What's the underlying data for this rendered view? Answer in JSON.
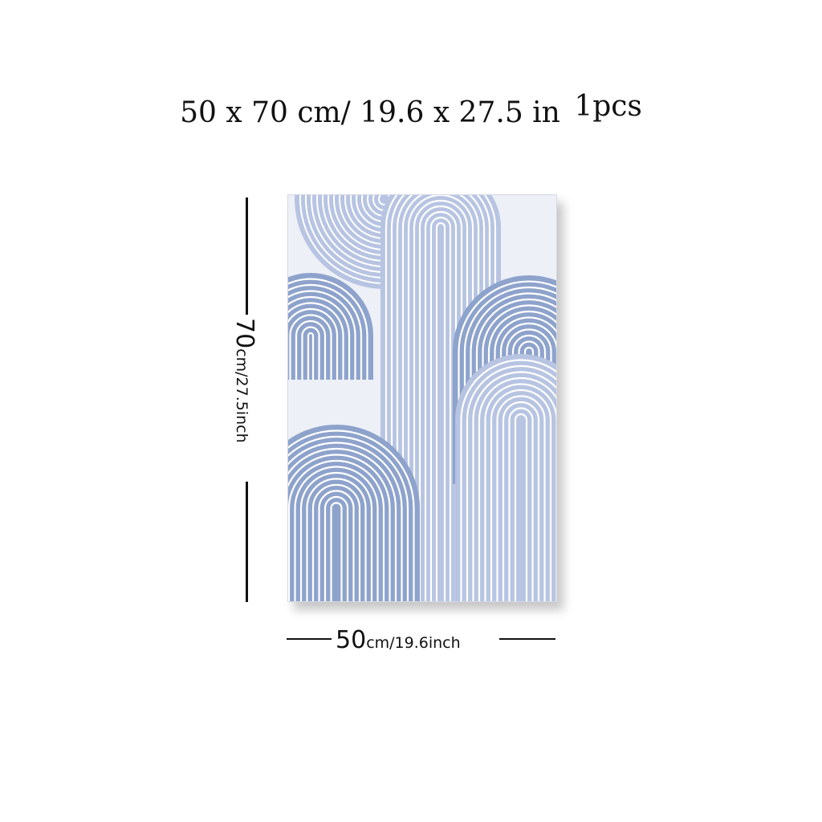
{
  "headline": {
    "size_text": "50 x 70 cm/ 19.6 x 27.5 in",
    "quantity_text": "1pcs"
  },
  "dimensions": {
    "height_value": "70",
    "height_unit_text": "cm/27.5inch",
    "width_value": "50",
    "width_unit_text": "cm/19.6inch"
  },
  "colors": {
    "poster_background": "#eef0f7",
    "arc_blue_dark": "#8ea3cc",
    "arc_blue_light": "#b7c4e2",
    "line_white": "#ffffff",
    "text": "#111111"
  }
}
